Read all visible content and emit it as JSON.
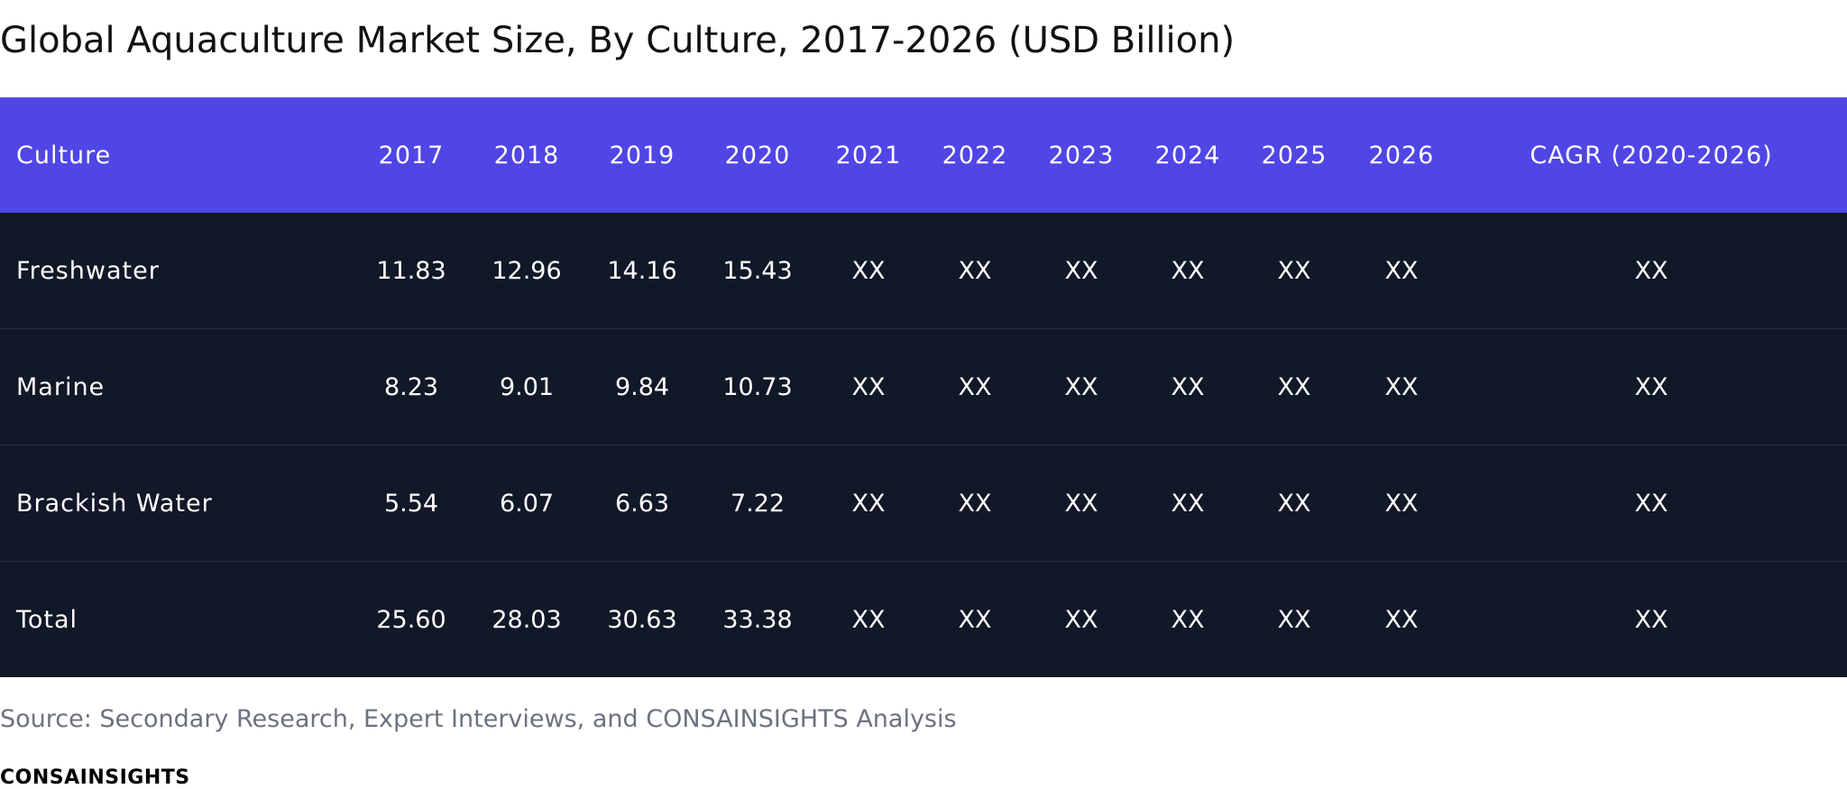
{
  "chart_data": {
    "type": "table",
    "title": "Global Aquaculture Market Size, By Culture, 2017-2026 (USD Billion)",
    "columns": [
      "Culture",
      "2017",
      "2018",
      "2019",
      "2020",
      "2021",
      "2022",
      "2023",
      "2024",
      "2025",
      "2026",
      "CAGR (2020-2026)"
    ],
    "rows": [
      [
        "Freshwater",
        "11.83",
        "12.96",
        "14.16",
        "15.43",
        "XX",
        "XX",
        "XX",
        "XX",
        "XX",
        "XX",
        "XX"
      ],
      [
        "Marine",
        "8.23",
        "9.01",
        "9.84",
        "10.73",
        "XX",
        "XX",
        "XX",
        "XX",
        "XX",
        "XX",
        "XX"
      ],
      [
        "Brackish Water",
        "5.54",
        "6.07",
        "6.63",
        "7.22",
        "XX",
        "XX",
        "XX",
        "XX",
        "XX",
        "XX",
        "XX"
      ],
      [
        "Total",
        "25.60",
        "28.03",
        "30.63",
        "33.38",
        "XX",
        "XX",
        "XX",
        "XX",
        "XX",
        "XX",
        "XX"
      ]
    ],
    "source": "Source: Secondary Research, Expert Interviews, and CONSAINSIGHTS Analysis",
    "brand": "CONSAINSIGHTS"
  },
  "colors": {
    "header_bg": "#5046e5",
    "body_bg": "#111827",
    "row_divider": "#243043",
    "source_text": "#6b7280"
  }
}
